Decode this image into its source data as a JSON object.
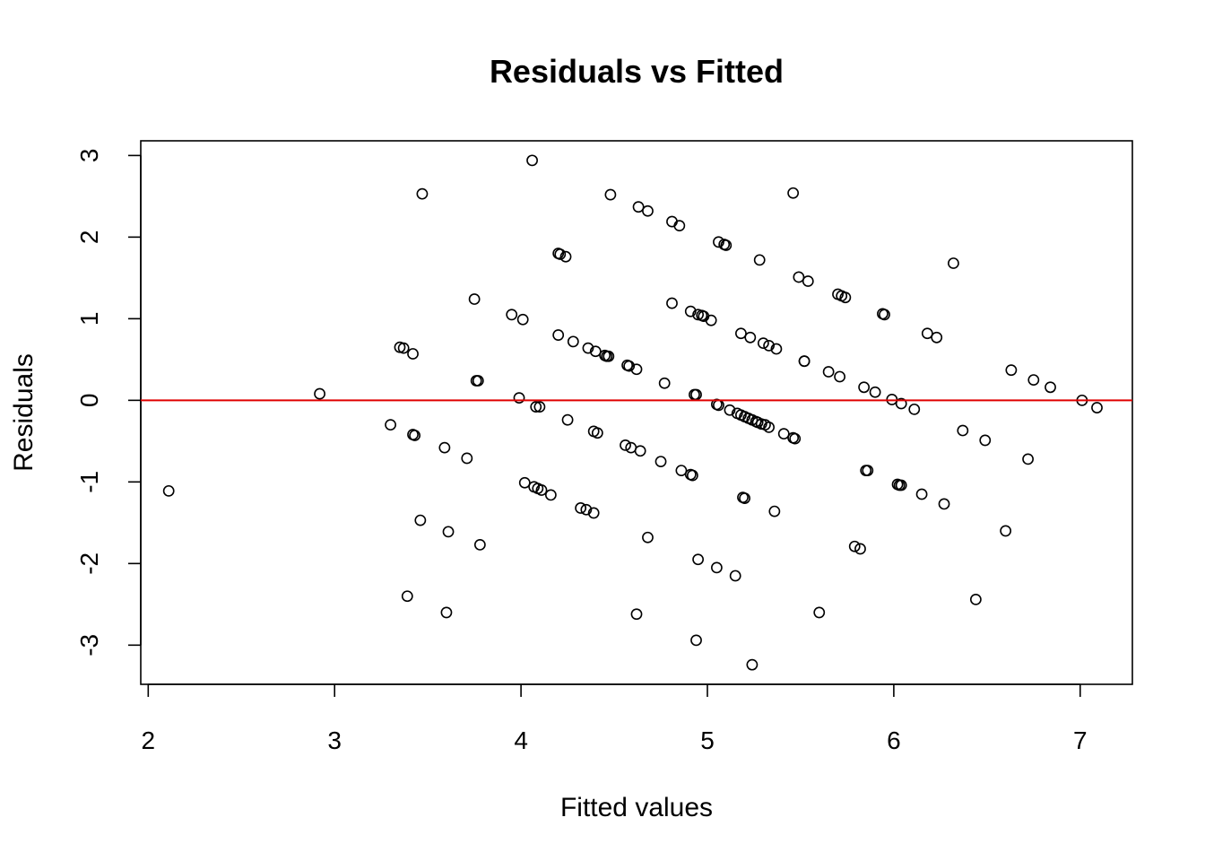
{
  "chart_data": {
    "type": "scatter",
    "title": "Residuals vs Fitted",
    "xlabel": "Fitted values",
    "ylabel": "Residuals",
    "xlim": [
      1.96,
      7.28
    ],
    "ylim": [
      -3.48,
      3.18
    ],
    "xticks": [
      2,
      3,
      4,
      5,
      6,
      7
    ],
    "yticks": [
      -3,
      -2,
      -1,
      0,
      1,
      2,
      3
    ],
    "grid": false,
    "reference_line": {
      "y": 0,
      "color": "#e00000"
    },
    "point_style": {
      "shape": "open-circle",
      "color": "#000000"
    },
    "points": [
      [
        2.11,
        -1.11
      ],
      [
        2.92,
        0.08
      ],
      [
        3.3,
        -0.3
      ],
      [
        3.35,
        0.65
      ],
      [
        3.37,
        0.64
      ],
      [
        3.39,
        -2.4
      ],
      [
        3.42,
        -0.42
      ],
      [
        3.43,
        -0.43
      ],
      [
        3.42,
        0.57
      ],
      [
        3.46,
        -1.47
      ],
      [
        3.47,
        2.53
      ],
      [
        3.59,
        -0.58
      ],
      [
        3.6,
        -2.6
      ],
      [
        3.61,
        -1.61
      ],
      [
        3.71,
        -0.71
      ],
      [
        3.75,
        1.24
      ],
      [
        3.76,
        0.24
      ],
      [
        3.77,
        0.24
      ],
      [
        3.78,
        -1.77
      ],
      [
        3.95,
        1.05
      ],
      [
        3.99,
        0.03
      ],
      [
        4.01,
        0.99
      ],
      [
        4.02,
        -1.01
      ],
      [
        4.06,
        2.94
      ],
      [
        4.07,
        -1.06
      ],
      [
        4.09,
        -1.08
      ],
      [
        4.08,
        -0.08
      ],
      [
        4.1,
        -0.08
      ],
      [
        4.11,
        -1.1
      ],
      [
        4.16,
        -1.16
      ],
      [
        4.2,
        1.8
      ],
      [
        4.21,
        1.79
      ],
      [
        4.2,
        0.8
      ],
      [
        4.24,
        1.76
      ],
      [
        4.25,
        -0.24
      ],
      [
        4.28,
        0.72
      ],
      [
        4.32,
        -1.32
      ],
      [
        4.35,
        -1.34
      ],
      [
        4.36,
        0.64
      ],
      [
        4.39,
        -1.38
      ],
      [
        4.39,
        -0.38
      ],
      [
        4.4,
        0.6
      ],
      [
        4.41,
        -0.4
      ],
      [
        4.45,
        0.55
      ],
      [
        4.46,
        0.54
      ],
      [
        4.47,
        0.54
      ],
      [
        4.48,
        2.52
      ],
      [
        4.56,
        -0.55
      ],
      [
        4.57,
        0.43
      ],
      [
        4.58,
        0.42
      ],
      [
        4.59,
        -0.58
      ],
      [
        4.62,
        0.38
      ],
      [
        4.62,
        -2.62
      ],
      [
        4.63,
        2.37
      ],
      [
        4.64,
        -0.62
      ],
      [
        4.68,
        2.32
      ],
      [
        4.68,
        -1.68
      ],
      [
        4.75,
        -0.75
      ],
      [
        4.77,
        0.21
      ],
      [
        4.81,
        2.19
      ],
      [
        4.81,
        1.19
      ],
      [
        4.85,
        2.14
      ],
      [
        4.86,
        -0.86
      ],
      [
        4.91,
        1.09
      ],
      [
        4.91,
        -0.91
      ],
      [
        4.92,
        -0.92
      ],
      [
        4.93,
        0.07
      ],
      [
        4.94,
        0.07
      ],
      [
        4.94,
        -2.94
      ],
      [
        4.95,
        -1.95
      ],
      [
        4.95,
        1.05
      ],
      [
        4.97,
        1.04
      ],
      [
        4.98,
        1.03
      ],
      [
        5.02,
        0.98
      ],
      [
        5.05,
        -2.05
      ],
      [
        5.05,
        -0.05
      ],
      [
        5.06,
        -0.06
      ],
      [
        5.06,
        1.94
      ],
      [
        5.09,
        1.91
      ],
      [
        5.1,
        1.9
      ],
      [
        5.12,
        -0.12
      ],
      [
        5.15,
        -2.15
      ],
      [
        5.16,
        -0.16
      ],
      [
        5.18,
        -0.18
      ],
      [
        5.19,
        -1.19
      ],
      [
        5.18,
        0.82
      ],
      [
        5.2,
        -0.2
      ],
      [
        5.2,
        -1.2
      ],
      [
        5.22,
        -0.22
      ],
      [
        5.23,
        0.77
      ],
      [
        5.24,
        -0.24
      ],
      [
        5.24,
        -3.24
      ],
      [
        5.26,
        -0.26
      ],
      [
        5.27,
        -0.27
      ],
      [
        5.28,
        1.72
      ],
      [
        5.29,
        -0.29
      ],
      [
        5.3,
        0.7
      ],
      [
        5.31,
        -0.3
      ],
      [
        5.33,
        -0.33
      ],
      [
        5.33,
        0.67
      ],
      [
        5.36,
        -1.36
      ],
      [
        5.37,
        0.63
      ],
      [
        5.41,
        -0.41
      ],
      [
        5.46,
        2.54
      ],
      [
        5.46,
        -0.46
      ],
      [
        5.47,
        -0.47
      ],
      [
        5.49,
        1.51
      ],
      [
        5.52,
        0.48
      ],
      [
        5.52,
        0.48
      ],
      [
        5.54,
        1.46
      ],
      [
        5.6,
        -2.6
      ],
      [
        5.65,
        0.35
      ],
      [
        5.7,
        1.3
      ],
      [
        5.71,
        0.29
      ],
      [
        5.72,
        1.28
      ],
      [
        5.74,
        1.26
      ],
      [
        5.79,
        -1.79
      ],
      [
        5.82,
        -1.82
      ],
      [
        5.84,
        0.16
      ],
      [
        5.85,
        -0.86
      ],
      [
        5.86,
        -0.86
      ],
      [
        5.9,
        0.1
      ],
      [
        5.94,
        1.06
      ],
      [
        5.95,
        1.05
      ],
      [
        5.99,
        0.01
      ],
      [
        6.02,
        -1.03
      ],
      [
        6.03,
        -1.04
      ],
      [
        6.04,
        -0.04
      ],
      [
        6.04,
        -1.04
      ],
      [
        6.11,
        -0.11
      ],
      [
        6.15,
        -1.15
      ],
      [
        6.18,
        0.82
      ],
      [
        6.23,
        0.77
      ],
      [
        6.27,
        -1.27
      ],
      [
        6.32,
        1.68
      ],
      [
        6.37,
        -0.37
      ],
      [
        6.44,
        -2.44
      ],
      [
        6.49,
        -0.49
      ],
      [
        6.6,
        -1.6
      ],
      [
        6.63,
        0.37
      ],
      [
        6.72,
        -0.72
      ],
      [
        6.75,
        0.25
      ],
      [
        6.84,
        0.16
      ],
      [
        7.01,
        0.0
      ],
      [
        7.09,
        -0.09
      ]
    ]
  }
}
